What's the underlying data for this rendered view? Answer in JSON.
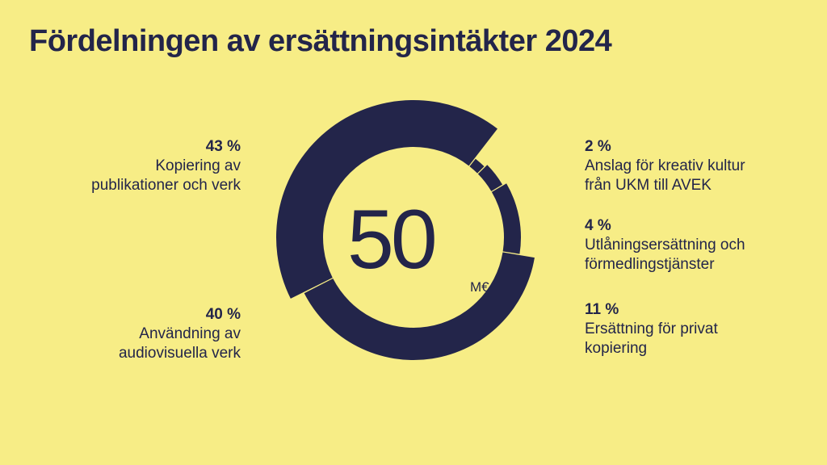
{
  "title": "Fördelningen av ersättningsintäkter 2024",
  "center": {
    "value": "50",
    "unit": "M€"
  },
  "colors": {
    "background": "#f7ed86",
    "ring": "#23254a"
  },
  "labels": {
    "l0": {
      "pct": "43 %",
      "line1": "Kopiering av",
      "line2": "publikationer och verk"
    },
    "l1": {
      "pct": "40 %",
      "line1": "Användning av",
      "line2": "audiovisuella verk"
    },
    "r0": {
      "pct": "2 %",
      "line1": "Anslag för kreativ kultur",
      "line2": "från UKM till AVEK"
    },
    "r1": {
      "pct": "4 %",
      "line1": "Utlåningsersättning och",
      "line2": "förmedlingstjänster"
    },
    "r2": {
      "pct": "11 %",
      "line1": "Ersättning för privat",
      "line2": "kopiering"
    }
  },
  "chart_data": {
    "type": "pie",
    "title": "Fördelningen av ersättningsintäkter 2024",
    "total": 50,
    "unit": "M€",
    "categories": [
      "Anslag för kreativ kultur från UKM till AVEK",
      "Utlåningsersättning och förmedlingstjänster",
      "Ersättning för privat kopiering",
      "Användning av audiovisuella verk",
      "Kopiering av publikationer och verk"
    ],
    "values": [
      2,
      4,
      11,
      40,
      43
    ],
    "value_unit": "%"
  }
}
